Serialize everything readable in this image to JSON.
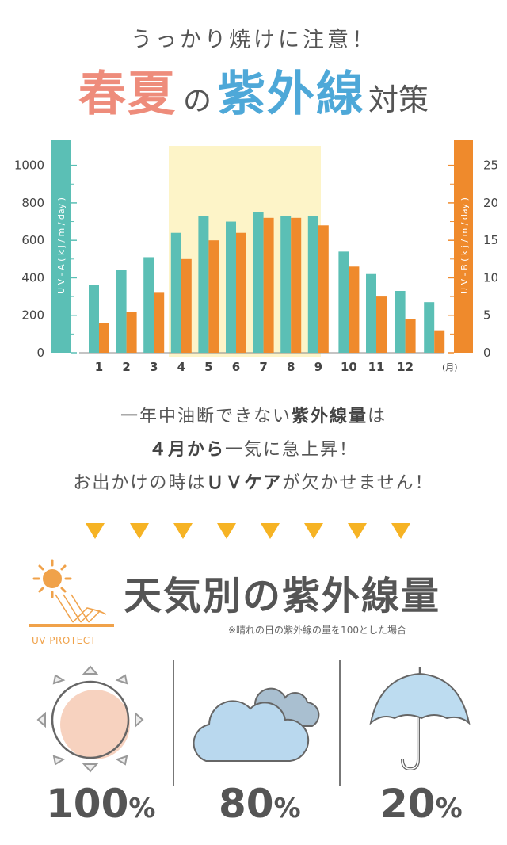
{
  "header": {
    "subtitle": "うっかり焼けに注意！",
    "title_part1": "春夏",
    "title_part2": "の",
    "title_part3": "紫外線",
    "title_part4": "対策"
  },
  "chart_data": {
    "type": "bar",
    "categories": [
      "1",
      "2",
      "3",
      "4",
      "5",
      "6",
      "7",
      "8",
      "9",
      "10",
      "11",
      "12"
    ],
    "x_unit": "(月)",
    "highlight_months": [
      4,
      9
    ],
    "series": [
      {
        "name": "UV-A",
        "axis": "left",
        "color": "#5bbfb5",
        "values": [
          360,
          440,
          510,
          640,
          730,
          700,
          750,
          730,
          730,
          540,
          420,
          330
        ]
      },
      {
        "name": "UV-B",
        "axis": "right",
        "color": "#ef8a2c",
        "values": [
          4,
          5.5,
          8,
          12.5,
          15,
          16,
          18,
          18,
          17,
          11.5,
          7.5,
          4.5
        ]
      }
    ],
    "extra_last_bar_uva": 270,
    "extra_last_bar_uvb": 3,
    "ylabel_left": "U V - A ( k j / m / day )",
    "ylabel_right": "U V - B ( k j / m / day )",
    "ylim_left": [
      0,
      1100
    ],
    "ylim_right": [
      0,
      27.5
    ],
    "yticks_left": [
      "0",
      "200",
      "400",
      "600",
      "800",
      "1000"
    ],
    "yticks_right": [
      "0",
      "5",
      "10",
      "15",
      "20",
      "25"
    ]
  },
  "message": {
    "line1_a": "一年中油断できない",
    "line1_b": "紫外線量",
    "line1_c": "は",
    "line2_a": "４月から",
    "line2_b": "一気に急上昇！",
    "line3_a": "お出かけの時は",
    "line3_b": "ＵＶケア",
    "line3_c": "が欠かせません！"
  },
  "weather": {
    "logo_text": "UV PROTECT",
    "title": "天気別の紫外線量",
    "note": "※晴れの日の紫外線の量を100とした場合",
    "items": [
      {
        "name": "sunny",
        "value": "100",
        "unit": "%"
      },
      {
        "name": "cloudy",
        "value": "80",
        "unit": "%"
      },
      {
        "name": "rainy",
        "value": "20",
        "unit": "%"
      }
    ]
  },
  "colors": {
    "teal": "#5bbfb5",
    "orange": "#ef8a2c",
    "highlight": "#fdf4c8",
    "arrow": "#f6b324"
  }
}
